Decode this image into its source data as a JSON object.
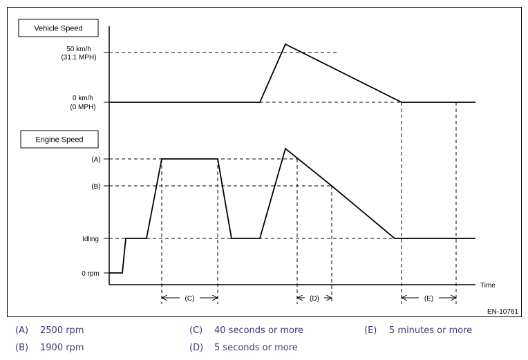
{
  "diagram": {
    "vehicle_speed_label": "Vehicle Speed",
    "engine_speed_label": "Engine Speed",
    "vs_ticks": {
      "high_line1": "50 km/h",
      "high_line2": "(31.1 MPH)",
      "zero_line1": "0 km/h",
      "zero_line2": "(0 MPH)"
    },
    "es_ticks": {
      "a": "(A)",
      "b": "(B)",
      "idling": "Idling",
      "zero": "0 rpm"
    },
    "time_label": "Time",
    "intervals": {
      "c": "(C)",
      "d": "(D)",
      "e": "(E)"
    },
    "figure_id": "EN-10761"
  },
  "legend": [
    {
      "key": "(A)",
      "text": "2500 rpm"
    },
    {
      "key": "(B)",
      "text": "1900 rpm"
    },
    {
      "key": "(C)",
      "text": "40 seconds or more"
    },
    {
      "key": "(D)",
      "text": "5 seconds or more"
    },
    {
      "key": "(E)",
      "text": "5 minutes or more"
    }
  ]
}
